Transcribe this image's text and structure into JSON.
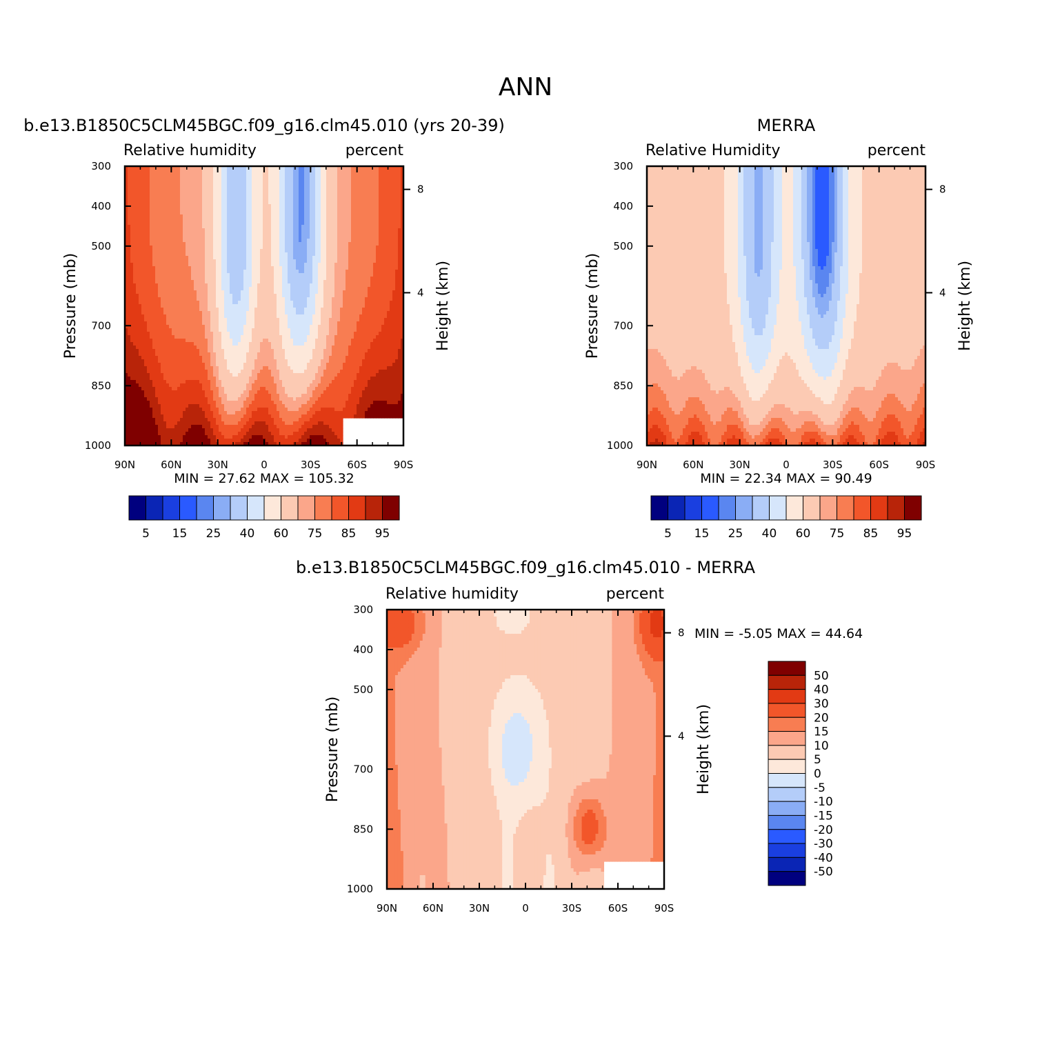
{
  "figure_title": "ANN",
  "chart_data": [
    {
      "type": "heatmap",
      "title": "b.e13.B1850C5CLM45BGC.f09_g16.clm45.010 (yrs 20-39)",
      "subtitle_left": "Relative humidity",
      "subtitle_right": "percent",
      "ylabel": "Pressure (mb)",
      "ylabel_right": "Height (km)",
      "x_ticks": [
        "90N",
        "60N",
        "30N",
        "0",
        "30S",
        "60S",
        "90S"
      ],
      "y_ticks": [
        "300",
        "400",
        "500",
        "700",
        "850",
        "1000"
      ],
      "y_ticks_right": [
        "8",
        "4"
      ],
      "y_scale": "log-pressure",
      "stats": "MIN =   27.62   MAX =  105.32",
      "colorbar": {
        "labels": [
          "5",
          "15",
          "25",
          "40",
          "60",
          "75",
          "85",
          "95"
        ],
        "colors": [
          "#00007f",
          "#0a25b5",
          "#1a3fe0",
          "#2a5aff",
          "#5a86f0",
          "#8aadf5",
          "#b4cdf9",
          "#d6e6fb",
          "#fde8da",
          "#fccab3",
          "#fba68a",
          "#f87d52",
          "#f2562a",
          "#e23a14",
          "#b82409",
          "#7f0000"
        ]
      },
      "z_range": [
        27.62,
        105.32
      ],
      "missing_region": "lower-right, south of ~50S below ~900 mb"
    },
    {
      "type": "heatmap",
      "title": "MERRA",
      "subtitle_left": "Relative Humidity",
      "subtitle_right": "percent",
      "ylabel": "Pressure (mb)",
      "ylabel_right": "Height (km)",
      "x_ticks": [
        "90N",
        "60N",
        "30N",
        "0",
        "30S",
        "60S",
        "90S"
      ],
      "y_ticks": [
        "300",
        "400",
        "500",
        "700",
        "850",
        "1000"
      ],
      "y_ticks_right": [
        "8",
        "4"
      ],
      "y_scale": "log-pressure",
      "stats": "MIN =   22.34   MAX =   90.49",
      "colorbar": {
        "labels": [
          "5",
          "15",
          "25",
          "40",
          "60",
          "75",
          "85",
          "95"
        ],
        "colors": [
          "#00007f",
          "#0a25b5",
          "#1a3fe0",
          "#2a5aff",
          "#5a86f0",
          "#8aadf5",
          "#b4cdf9",
          "#d6e6fb",
          "#fde8da",
          "#fccab3",
          "#fba68a",
          "#f87d52",
          "#f2562a",
          "#e23a14",
          "#b82409",
          "#7f0000"
        ]
      },
      "z_range": [
        22.34,
        90.49
      ]
    },
    {
      "type": "heatmap",
      "title": "b.e13.B1850C5CLM45BGC.f09_g16.clm45.010 - MERRA",
      "subtitle_left": "Relative humidity",
      "subtitle_right": "percent",
      "ylabel": "Pressure (mb)",
      "ylabel_right": "Height (km)",
      "x_ticks": [
        "90N",
        "60N",
        "30N",
        "0",
        "30S",
        "60S",
        "90S"
      ],
      "y_ticks": [
        "300",
        "400",
        "500",
        "700",
        "850",
        "1000"
      ],
      "y_ticks_right": [
        "8",
        "4"
      ],
      "y_scale": "log-pressure",
      "stats": "MIN =   -5.05   MAX =   44.64",
      "colorbar": {
        "labels": [
          "50",
          "40",
          "30",
          "20",
          "15",
          "10",
          "5",
          "0",
          "-5",
          "-10",
          "-15",
          "-20",
          "-30",
          "-40",
          "-50"
        ],
        "colors": [
          "#7f0000",
          "#b82409",
          "#e23a14",
          "#f2562a",
          "#f87d52",
          "#fba68a",
          "#fccab3",
          "#fde8da",
          "#d6e6fb",
          "#b4cdf9",
          "#8aadf5",
          "#5a86f0",
          "#2a5aff",
          "#1a3fe0",
          "#0a25b5",
          "#00007f"
        ]
      },
      "z_range": [
        -5.05,
        44.64
      ],
      "missing_region": "lower-right, south of ~50S below ~900 mb"
    }
  ]
}
